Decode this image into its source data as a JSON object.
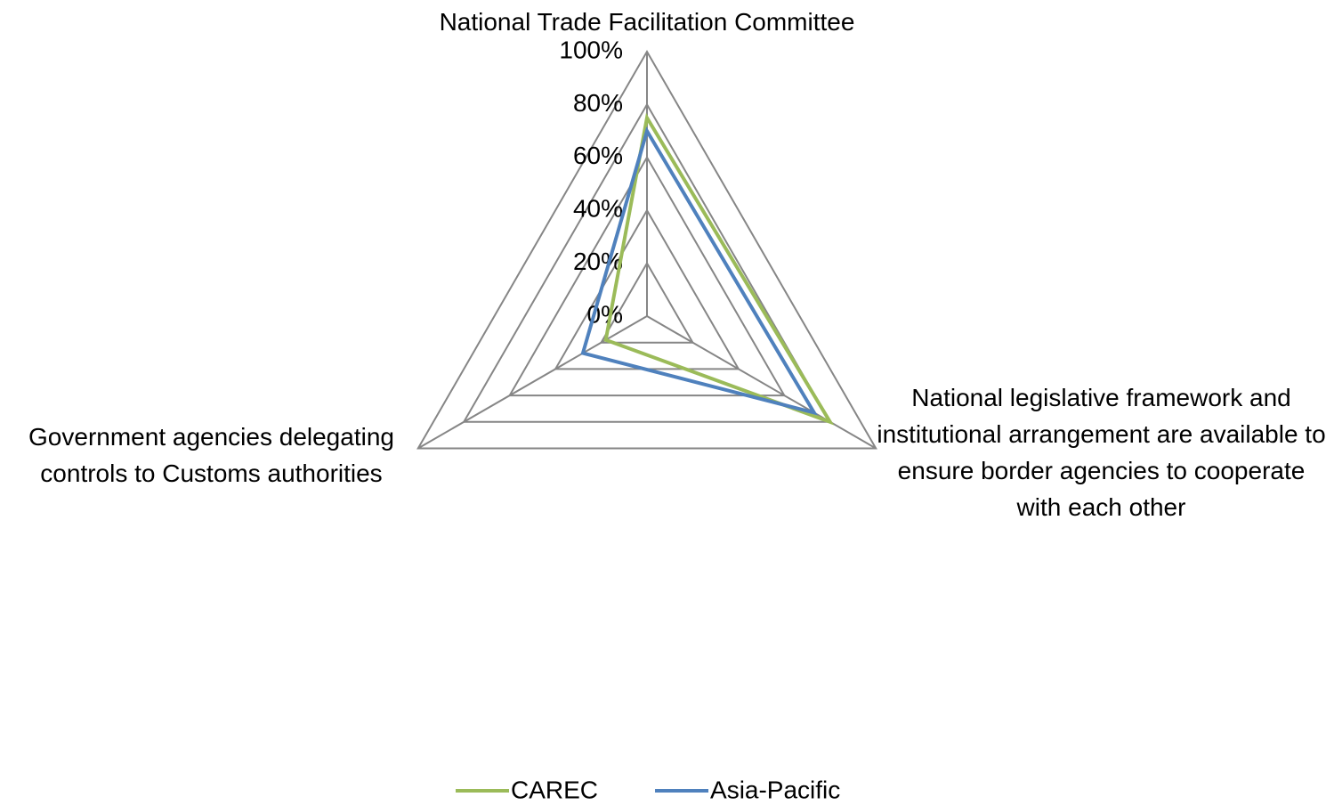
{
  "chart_data": {
    "type": "radar",
    "categories": [
      "National Trade Facilitation Committee",
      "National legislative framework and institutional arrangement are available to ensure border agencies to cooperate with each  other",
      "Government agencies delegating controls to Customs authorities"
    ],
    "series": [
      {
        "name": "CAREC",
        "color": "#9bbb59",
        "values": [
          75,
          80,
          18
        ]
      },
      {
        "name": "Asia-Pacific",
        "color": "#4f81bd",
        "values": [
          70,
          73,
          28
        ]
      }
    ],
    "ylim": [
      0,
      100
    ],
    "yticks": [
      {
        "value": 0,
        "label": "0%"
      },
      {
        "value": 20,
        "label": "20%"
      },
      {
        "value": 40,
        "label": "40%"
      },
      {
        "value": 60,
        "label": "60%"
      },
      {
        "value": 80,
        "label": "80%"
      },
      {
        "value": 100,
        "label": "100%"
      }
    ],
    "grid": true,
    "legend": "bottom"
  }
}
